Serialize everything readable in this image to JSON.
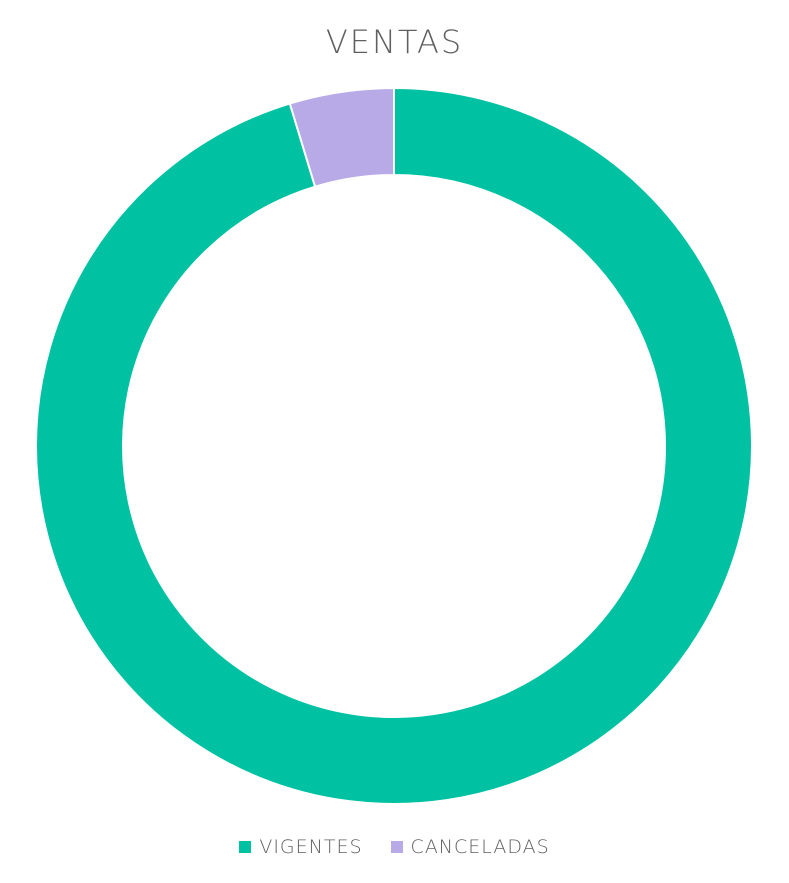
{
  "chart_data": {
    "type": "pie",
    "subtype": "donut",
    "title": "VENTAS",
    "categories": [
      "VIGENTES",
      "CANCELADAS"
    ],
    "values": [
      95.3,
      4.7
    ],
    "colors": [
      "#00c2a3",
      "#b8aae6"
    ],
    "legend_position": "bottom"
  }
}
